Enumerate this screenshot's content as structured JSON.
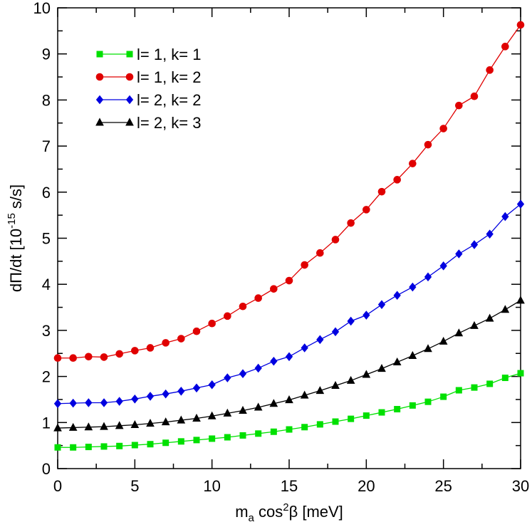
{
  "chart_data": {
    "type": "line",
    "xlabel_main": "m",
    "xlabel_sub": "a",
    "xlabel_mid": " cos",
    "xlabel_sup": "2",
    "xlabel_end": "β [meV]",
    "ylabel_main": "dΠ/dt  [10",
    "ylabel_sup": "-15",
    "ylabel_end": " s/s]",
    "xlim": [
      0,
      30
    ],
    "ylim": [
      0,
      10
    ],
    "x_ticks": [
      "0",
      "5",
      "10",
      "15",
      "20",
      "25",
      "30"
    ],
    "y_ticks": [
      "0",
      "1",
      "2",
      "3",
      "4",
      "5",
      "6",
      "7",
      "8",
      "9",
      "10"
    ],
    "x": [
      0,
      1,
      2,
      3,
      4,
      5,
      6,
      7,
      8,
      9,
      10,
      11,
      12,
      13,
      14,
      15,
      16,
      17,
      18,
      19,
      20,
      21,
      22,
      23,
      24,
      25,
      26,
      27,
      28,
      29,
      30
    ],
    "legend_position": "top-left",
    "series": [
      {
        "name": "l= 1, k= 1",
        "color": "#00e000",
        "marker": "square",
        "values": [
          0.46,
          0.46,
          0.47,
          0.48,
          0.49,
          0.51,
          0.53,
          0.56,
          0.59,
          0.62,
          0.65,
          0.68,
          0.72,
          0.76,
          0.8,
          0.85,
          0.9,
          0.96,
          1.02,
          1.08,
          1.15,
          1.22,
          1.29,
          1.37,
          1.45,
          1.56,
          1.7,
          1.76,
          1.84,
          1.97,
          2.07
        ]
      },
      {
        "name": "l= 1, k= 2",
        "color": "#e00000",
        "marker": "circle",
        "values": [
          2.4,
          2.4,
          2.43,
          2.42,
          2.49,
          2.56,
          2.62,
          2.73,
          2.82,
          2.98,
          3.15,
          3.31,
          3.52,
          3.7,
          3.9,
          4.08,
          4.42,
          4.68,
          4.97,
          5.33,
          5.62,
          6.01,
          6.27,
          6.62,
          7.03,
          7.38,
          7.88,
          8.08,
          8.65,
          9.16,
          9.63
        ]
      },
      {
        "name": "l= 2, k= 2",
        "color": "#0000e0",
        "marker": "diamond",
        "values": [
          1.41,
          1.42,
          1.43,
          1.43,
          1.46,
          1.51,
          1.57,
          1.62,
          1.68,
          1.75,
          1.82,
          1.97,
          2.06,
          2.18,
          2.33,
          2.43,
          2.62,
          2.8,
          2.97,
          3.2,
          3.33,
          3.56,
          3.76,
          3.94,
          4.16,
          4.4,
          4.66,
          4.86,
          5.09,
          5.47,
          5.74
        ]
      },
      {
        "name": "l= 2, k= 3",
        "color": "#000000",
        "marker": "triangle",
        "values": [
          0.88,
          0.89,
          0.9,
          0.91,
          0.93,
          0.95,
          0.98,
          1.01,
          1.05,
          1.09,
          1.14,
          1.2,
          1.26,
          1.33,
          1.41,
          1.49,
          1.59,
          1.69,
          1.8,
          1.91,
          2.04,
          2.17,
          2.31,
          2.45,
          2.6,
          2.76,
          2.94,
          3.1,
          3.26,
          3.45,
          3.65
        ]
      }
    ]
  }
}
